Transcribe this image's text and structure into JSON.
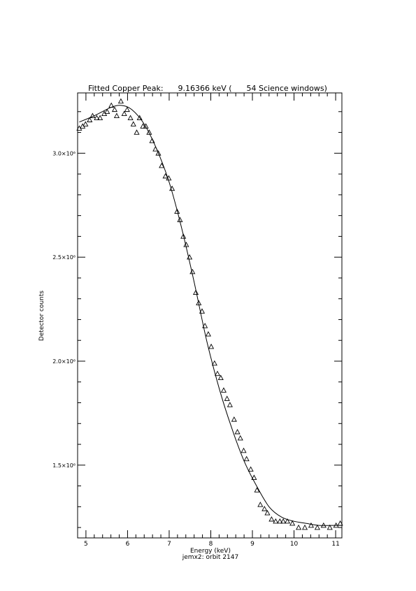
{
  "chart_data": {
    "type": "scatter",
    "title": "Fitted Copper Peak:      9.16366 keV (      54 Science windows)",
    "xlabel": "Energy (keV)",
    "subtitle": "jemx2: orbit 2147",
    "ylabel": "Detector counts",
    "xlim": [
      4.8,
      11.15
    ],
    "ylim": [
      1150000,
      3290000
    ],
    "x_ticks": [
      {
        "value": 5,
        "label": "5"
      },
      {
        "value": 6,
        "label": "6"
      },
      {
        "value": 7,
        "label": "7"
      },
      {
        "value": 8,
        "label": "8"
      },
      {
        "value": 9,
        "label": "9"
      },
      {
        "value": 10,
        "label": "10"
      },
      {
        "value": 11,
        "label": "11"
      }
    ],
    "y_ticks": [
      {
        "value": 1500000,
        "label": "1.5×10⁶"
      },
      {
        "value": 2000000,
        "label": "2.0×10⁶"
      },
      {
        "value": 2500000,
        "label": "2.5×10⁶"
      },
      {
        "value": 3000000,
        "label": "3.0×10⁶"
      }
    ],
    "grid": false,
    "series": [
      {
        "marker": "triangle",
        "x": [
          4.84,
          4.92,
          4.99,
          5.09,
          5.16,
          5.26,
          5.34,
          5.44,
          5.51,
          5.61,
          5.69,
          5.74,
          5.84,
          5.92,
          5.99,
          6.07,
          6.14,
          6.22,
          6.29,
          6.37,
          6.44,
          6.52,
          6.59,
          6.67,
          6.74,
          6.82,
          6.91,
          6.99,
          7.07,
          7.19,
          7.26,
          7.34,
          7.41,
          7.49,
          7.56,
          7.64,
          7.71,
          7.79,
          7.86,
          7.94,
          8.01,
          8.09,
          8.16,
          8.24,
          8.31,
          8.39,
          8.46,
          8.56,
          8.64,
          8.71,
          8.79,
          8.86,
          8.96,
          9.04,
          9.11,
          9.19,
          9.29,
          9.36,
          9.46,
          9.56,
          9.66,
          9.74,
          9.84,
          9.96,
          10.11,
          10.26,
          10.41,
          10.56,
          10.71,
          10.86,
          11.01,
          11.11
        ],
        "y": [
          3120000,
          3130000,
          3140000,
          3160000,
          3180000,
          3170000,
          3170000,
          3190000,
          3200000,
          3230000,
          3210000,
          3180000,
          3250000,
          3190000,
          3210000,
          3170000,
          3140000,
          3100000,
          3170000,
          3130000,
          3130000,
          3100000,
          3060000,
          3020000,
          3000000,
          2940000,
          2890000,
          2880000,
          2830000,
          2720000,
          2680000,
          2600000,
          2560000,
          2500000,
          2430000,
          2330000,
          2280000,
          2240000,
          2170000,
          2130000,
          2070000,
          1990000,
          1940000,
          1920000,
          1860000,
          1820000,
          1790000,
          1720000,
          1660000,
          1630000,
          1570000,
          1530000,
          1480000,
          1440000,
          1380000,
          1310000,
          1290000,
          1270000,
          1240000,
          1230000,
          1230000,
          1230000,
          1230000,
          1220000,
          1200000,
          1200000,
          1210000,
          1200000,
          1210000,
          1200000,
          1210000,
          1220000
        ]
      },
      {
        "style": "line",
        "x": [
          4.84,
          5.2,
          5.6,
          5.85,
          6.1,
          6.4,
          6.7,
          7.0,
          7.3,
          7.6,
          7.9,
          8.2,
          8.5,
          8.8,
          9.1,
          9.4,
          9.7,
          10.0,
          10.3,
          10.6,
          10.9,
          11.15
        ],
        "y": [
          3150000,
          3180000,
          3220000,
          3230000,
          3210000,
          3140000,
          3020000,
          2860000,
          2640000,
          2380000,
          2100000,
          1870000,
          1680000,
          1520000,
          1400000,
          1300000,
          1250000,
          1230000,
          1220000,
          1210000,
          1210000,
          1210000
        ]
      }
    ]
  }
}
